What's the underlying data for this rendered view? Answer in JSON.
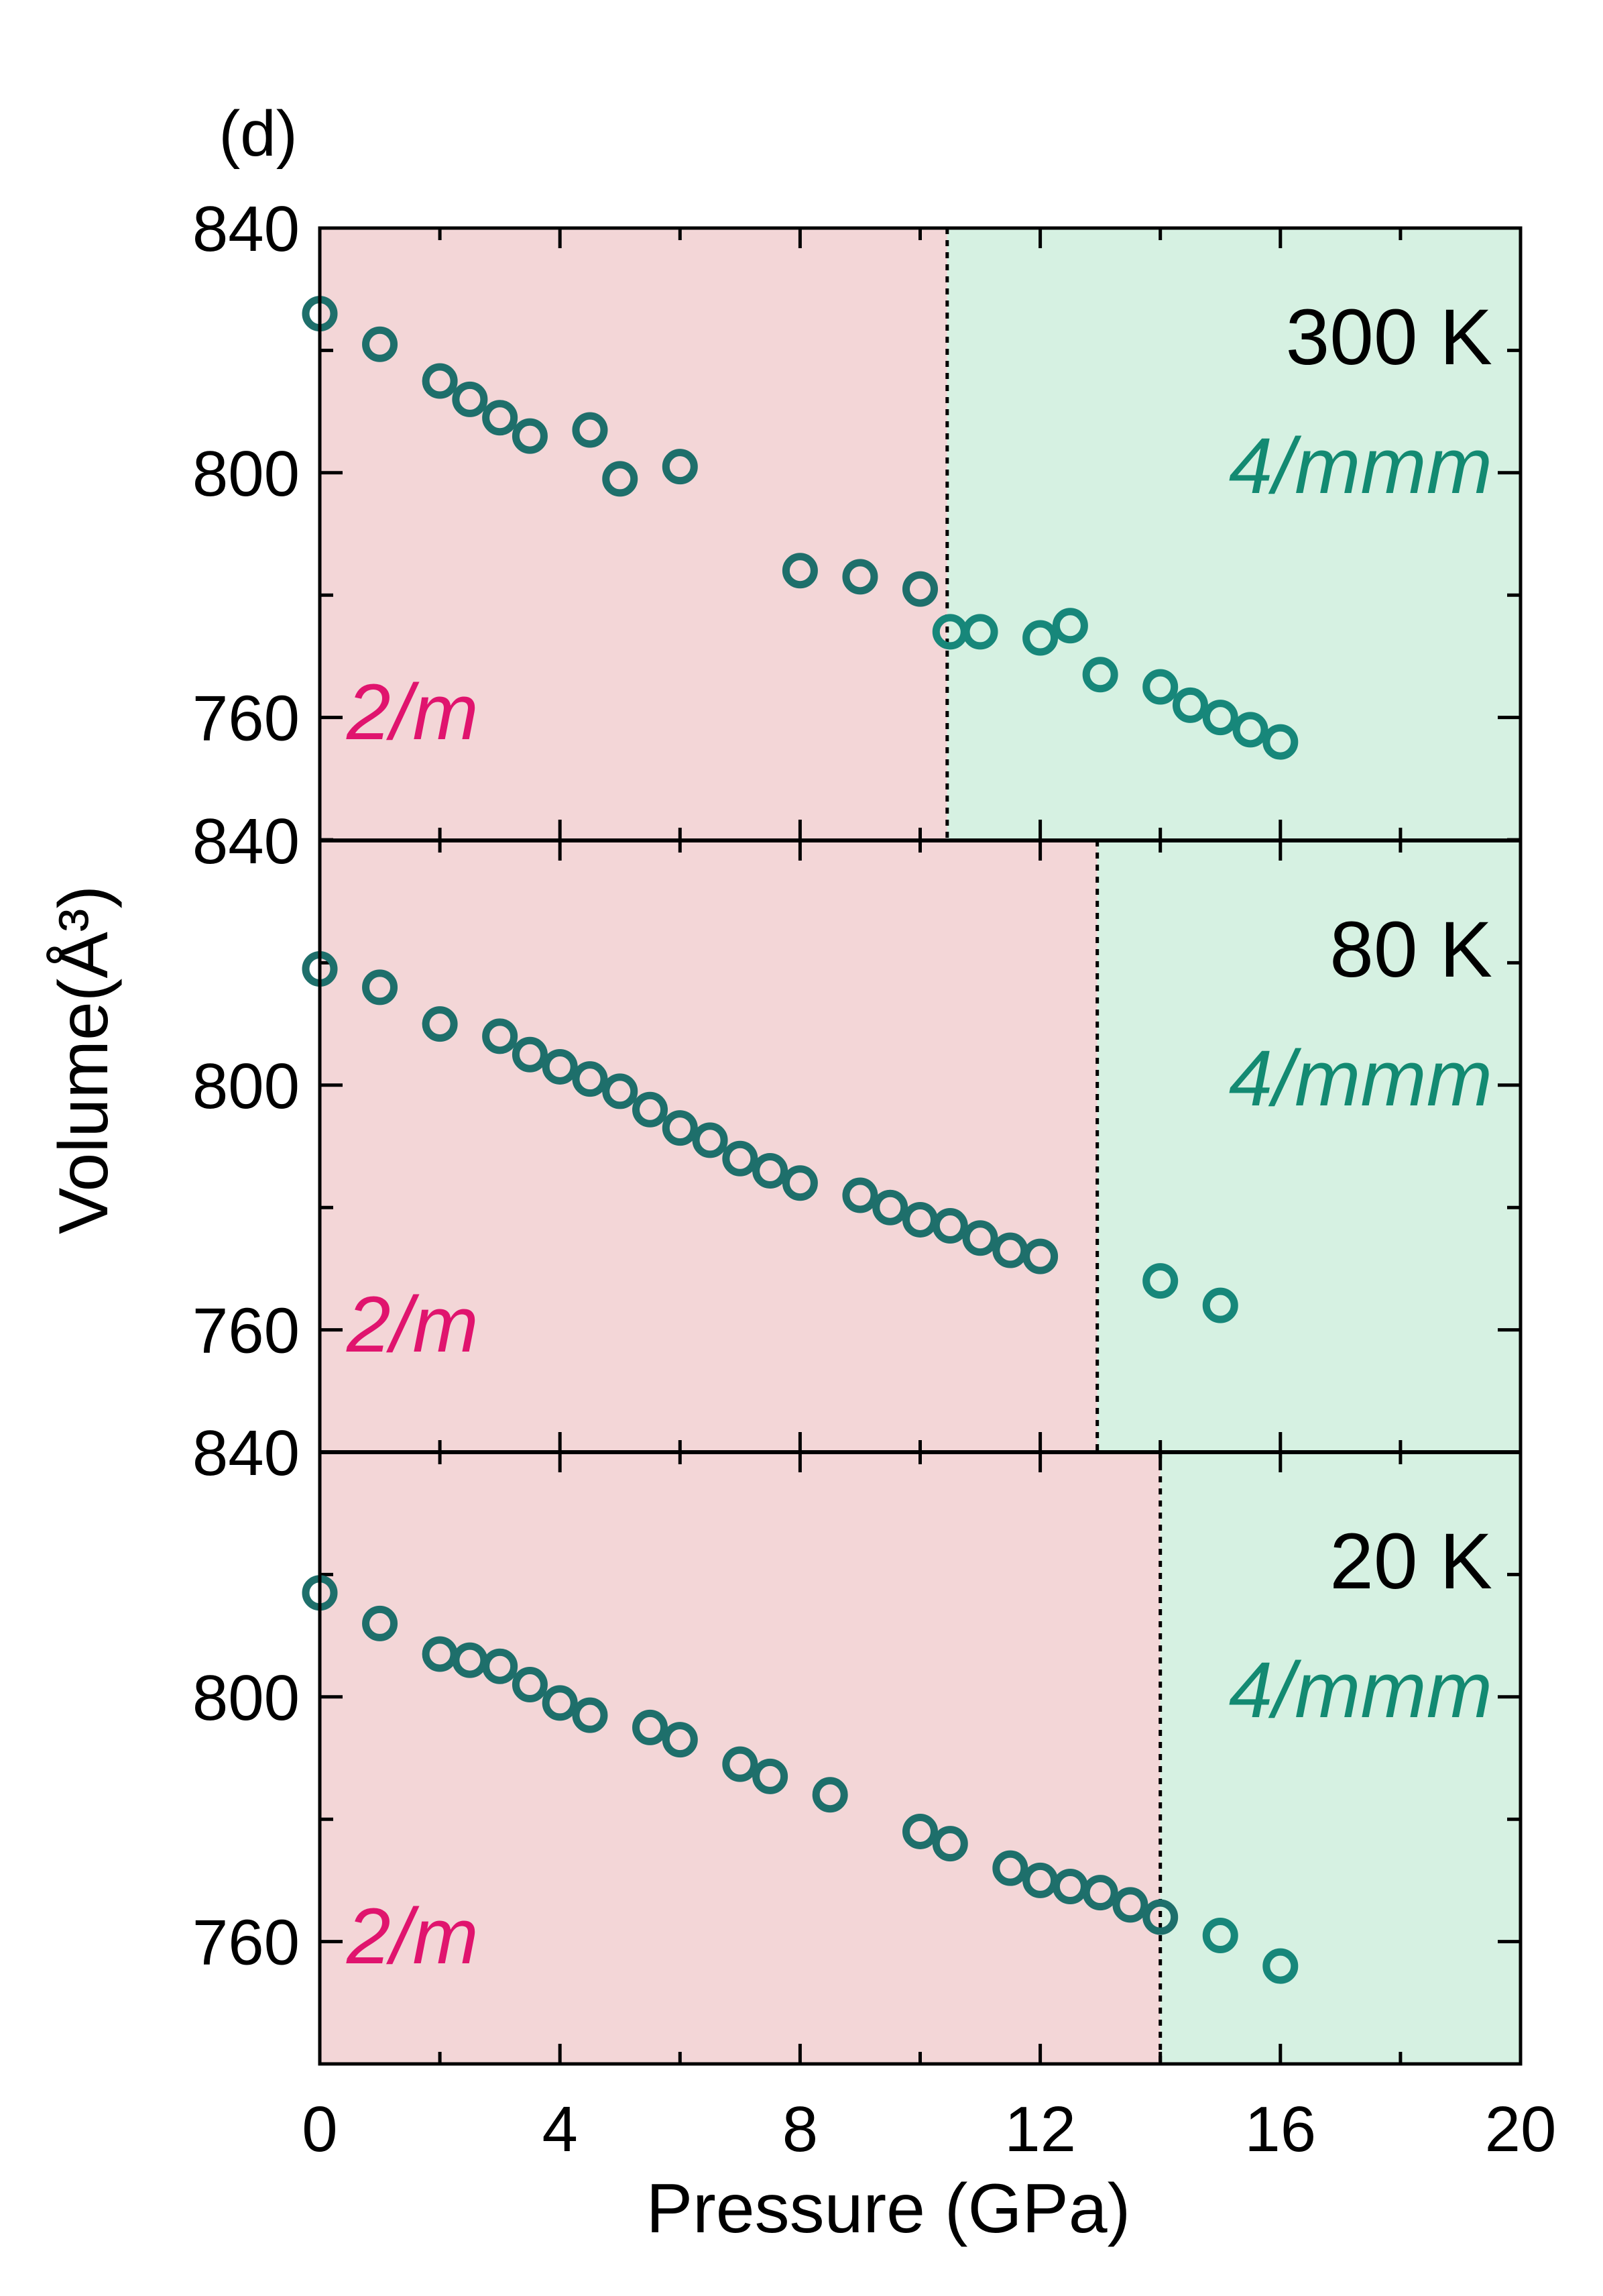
{
  "chart_data": {
    "type": "scatter",
    "panel_label": "(d)",
    "xlabel": "Pressure (GPa)",
    "ylabel": "Volume(Å³)",
    "xlim": [
      0,
      20
    ],
    "xticks": [
      0,
      4,
      8,
      12,
      16,
      20
    ],
    "x_tick_labels": [
      "0",
      "4",
      "8",
      "12",
      "16",
      "20"
    ],
    "colors": {
      "low_phase_bg": "#f3d6d7",
      "high_phase_bg": "#d6f1e2",
      "marker": "#1e6f6b",
      "marker_high": "#17877a",
      "low_phase_text": "#e0146e",
      "high_phase_text": "#138a72"
    },
    "panels": [
      {
        "temperature": "300 K",
        "low_phase_label": "2/m",
        "high_phase_label": "4/mmm",
        "boundary_pressure": 10.45,
        "ylim": [
          740,
          840
        ],
        "y_tick_labels": [
          "840",
          "800",
          "760"
        ],
        "y_ticks": [
          840,
          800,
          760
        ],
        "x": [
          0,
          1,
          2,
          2.5,
          3,
          3.5,
          4.5,
          5,
          6,
          8,
          9,
          10,
          10.5,
          11,
          12,
          12.5,
          13,
          14,
          14.5,
          15,
          15.5,
          16
        ],
        "y": [
          826,
          821,
          815,
          812,
          809,
          806,
          807,
          799,
          801,
          784,
          783,
          781,
          774,
          774,
          773,
          775,
          767,
          765,
          762,
          760,
          758,
          756
        ]
      },
      {
        "temperature": "80 K",
        "low_phase_label": "2/m",
        "high_phase_label": "4/mmm",
        "boundary_pressure": 12.95,
        "ylim": [
          740,
          840
        ],
        "y_tick_labels": [
          "840",
          "800",
          "760"
        ],
        "y_ticks": [
          840,
          800,
          760
        ],
        "x": [
          0,
          1,
          2,
          3,
          3.5,
          4,
          4.5,
          5,
          5.5,
          6,
          6.5,
          7,
          7.5,
          8,
          9,
          9.5,
          10,
          10.5,
          11,
          11.5,
          12,
          14,
          15
        ],
        "y": [
          819,
          816,
          810,
          808,
          805,
          803,
          801,
          799,
          796,
          793,
          791,
          788,
          786,
          784,
          782,
          780,
          778,
          777,
          775,
          773,
          772,
          768,
          764
        ]
      },
      {
        "temperature": "20 K",
        "low_phase_label": "2/m",
        "high_phase_label": "4/mmm",
        "boundary_pressure": 14.0,
        "ylim": [
          740,
          840
        ],
        "y_tick_labels": [
          "840",
          "800",
          "760"
        ],
        "y_ticks": [
          840,
          800,
          760
        ],
        "x": [
          0,
          1,
          2,
          2.5,
          3,
          3.5,
          4,
          4.5,
          5.5,
          6,
          7,
          7.5,
          8.5,
          10,
          10.5,
          11.5,
          12,
          12.5,
          13,
          13.5,
          14,
          15,
          16
        ],
        "y": [
          817,
          812,
          807,
          806,
          805,
          802,
          799,
          797,
          795,
          793,
          789,
          787,
          784,
          778,
          776,
          772,
          770,
          769,
          768,
          766,
          764,
          761,
          756
        ]
      }
    ]
  }
}
